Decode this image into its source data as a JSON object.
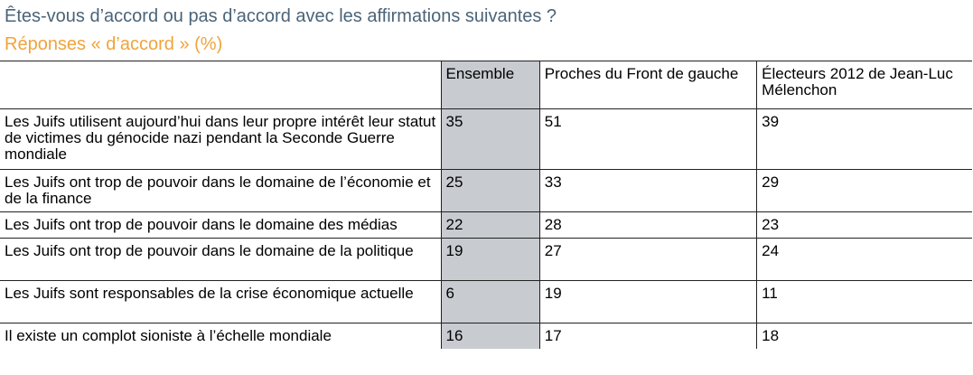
{
  "title": "Êtes-vous d’accord ou pas d’accord avec les affirmations suivantes ?",
  "subtitle": "Réponses « d’accord »  (%)",
  "colors": {
    "title": "#4a6478",
    "subtitle": "#f0a33c",
    "shaded_column": "#c8cbd0"
  },
  "chart_data": {
    "type": "table",
    "columns": [
      "",
      "Ensemble",
      "Proches du Front de gauche",
      "Électeurs 2012 de Jean-Luc Mélenchon"
    ],
    "rows": [
      {
        "label": "Les Juifs utilisent aujourd’hui dans leur propre intérêt leur statut de victimes du génocide nazi pendant la Seconde Guerre mondiale",
        "values": [
          "35",
          "51",
          "39"
        ]
      },
      {
        "label": "Les Juifs ont trop de pouvoir dans le domaine de l’économie et de la finance",
        "values": [
          "25",
          "33",
          "29"
        ]
      },
      {
        "label": "Les Juifs ont trop de pouvoir dans le domaine des médias",
        "values": [
          "22",
          "28",
          "23"
        ]
      },
      {
        "label": "Les Juifs ont trop de pouvoir dans le domaine de la politique",
        "values": [
          "19",
          "27",
          "24"
        ]
      },
      {
        "label": "Les Juifs sont responsables de la crise économique actuelle",
        "values": [
          "6",
          "19",
          "11"
        ]
      },
      {
        "label": "Il existe un complot sioniste à l’échelle mondiale",
        "values": [
          "16",
          "17",
          "18"
        ]
      }
    ]
  }
}
